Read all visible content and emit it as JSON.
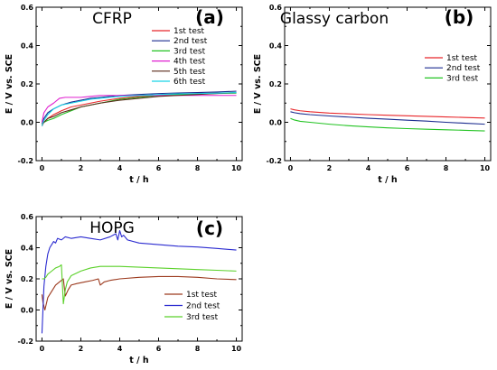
{
  "chart_data": [
    {
      "type": "line",
      "title": "CFRP",
      "panel_letter": "(a)",
      "xlabel": "t / h",
      "ylabel": "E / V vs. SCE",
      "xlim": [
        -0.3,
        10.3
      ],
      "ylim": [
        -0.2,
        0.6
      ],
      "x_ticks": [
        0,
        2,
        4,
        6,
        8,
        10
      ],
      "x_tick_labels": [
        "0",
        "2",
        "4",
        "6",
        "8",
        "10"
      ],
      "y_ticks": [
        -0.2,
        0.0,
        0.2,
        0.4,
        0.6
      ],
      "y_tick_labels": [
        "-0.2",
        "0.0",
        "0.2",
        "0.4",
        "0.6"
      ],
      "legend_position": "top-right",
      "series": [
        {
          "name": "1st test",
          "color": "#e8262a",
          "x": [
            0,
            0.1,
            0.3,
            0.6,
            1,
            1.5,
            2,
            2.5,
            3,
            4,
            5,
            6,
            7,
            8,
            9,
            10
          ],
          "y": [
            -0.02,
            0.0,
            0.02,
            0.04,
            0.06,
            0.08,
            0.09,
            0.1,
            0.11,
            0.125,
            0.135,
            0.14,
            0.145,
            0.15,
            0.152,
            0.155
          ]
        },
        {
          "name": "2nd test",
          "color": "#1b2c8f",
          "x": [
            0,
            0.1,
            0.3,
            0.6,
            1,
            1.5,
            2,
            2.5,
            3,
            4,
            5,
            6,
            7,
            8,
            9,
            10
          ],
          "y": [
            -0.01,
            0.02,
            0.05,
            0.07,
            0.09,
            0.105,
            0.115,
            0.125,
            0.13,
            0.14,
            0.145,
            0.15,
            0.153,
            0.155,
            0.158,
            0.162
          ]
        },
        {
          "name": "3rd test",
          "color": "#22c322",
          "x": [
            0,
            0.1,
            0.3,
            0.6,
            1,
            1.5,
            2,
            2.5,
            3,
            4,
            5,
            6,
            7,
            8,
            9,
            10
          ],
          "y": [
            -0.01,
            0.0,
            0.01,
            0.02,
            0.04,
            0.06,
            0.08,
            0.09,
            0.1,
            0.12,
            0.13,
            0.14,
            0.145,
            0.148,
            0.15,
            0.152
          ]
        },
        {
          "name": "4th test",
          "color": "#e020d0",
          "x": [
            0,
            0.1,
            0.3,
            0.6,
            0.9,
            1.2,
            1.5,
            2,
            2.5,
            3,
            4,
            5,
            6,
            7,
            8,
            9,
            10
          ],
          "y": [
            0.0,
            0.05,
            0.08,
            0.1,
            0.125,
            0.13,
            0.13,
            0.13,
            0.135,
            0.14,
            0.14,
            0.14,
            0.14,
            0.14,
            0.14,
            0.14,
            0.14
          ]
        },
        {
          "name": "5th test",
          "color": "#5a2a1a",
          "x": [
            0,
            0.1,
            0.3,
            0.6,
            1,
            1.5,
            2,
            2.5,
            3,
            4,
            5,
            6,
            7,
            8,
            9,
            10
          ],
          "y": [
            -0.01,
            0.0,
            0.02,
            0.03,
            0.05,
            0.065,
            0.08,
            0.09,
            0.1,
            0.115,
            0.125,
            0.135,
            0.14,
            0.145,
            0.15,
            0.155
          ]
        },
        {
          "name": "6th test",
          "color": "#19d4e6",
          "x": [
            0,
            0.1,
            0.3,
            0.6,
            1,
            1.5,
            2,
            2.5,
            3,
            4,
            5,
            6,
            7,
            8,
            9,
            10
          ],
          "y": [
            -0.02,
            0.01,
            0.04,
            0.07,
            0.09,
            0.1,
            0.11,
            0.12,
            0.125,
            0.135,
            0.14,
            0.145,
            0.148,
            0.15,
            0.152,
            0.155
          ]
        }
      ]
    },
    {
      "type": "line",
      "title": "Glassy carbon",
      "panel_letter": "(b)",
      "xlabel": "t / h",
      "ylabel": "E / V vs. SCE",
      "xlim": [
        -0.3,
        10.3
      ],
      "ylim": [
        -0.2,
        0.6
      ],
      "x_ticks": [
        0,
        2,
        4,
        6,
        8,
        10
      ],
      "x_tick_labels": [
        "0",
        "2",
        "4",
        "6",
        "8",
        "10"
      ],
      "y_ticks": [
        -0.2,
        0.0,
        0.2,
        0.4,
        0.6
      ],
      "y_tick_labels": [
        "-0.2",
        "0.0",
        "0.2",
        "0.4",
        "0.6"
      ],
      "legend_position": "right",
      "series": [
        {
          "name": "1st test",
          "color": "#e8262a",
          "x": [
            0,
            0.2,
            0.5,
            1,
            2,
            3,
            4,
            5,
            6,
            7,
            8,
            9,
            10
          ],
          "y": [
            0.07,
            0.065,
            0.06,
            0.055,
            0.048,
            0.044,
            0.04,
            0.037,
            0.034,
            0.031,
            0.028,
            0.025,
            0.022
          ]
        },
        {
          "name": "2nd test",
          "color": "#1b2c8f",
          "x": [
            0,
            0.2,
            0.5,
            1,
            2,
            3,
            4,
            5,
            6,
            7,
            8,
            9,
            10
          ],
          "y": [
            0.055,
            0.05,
            0.045,
            0.04,
            0.033,
            0.027,
            0.021,
            0.016,
            0.011,
            0.006,
            0.0,
            -0.005,
            -0.01
          ]
        },
        {
          "name": "3rd test",
          "color": "#22c322",
          "x": [
            0,
            0.2,
            0.5,
            1,
            2,
            3,
            4,
            5,
            6,
            7,
            8,
            9,
            10
          ],
          "y": [
            0.02,
            0.012,
            0.005,
            0.0,
            -0.01,
            -0.018,
            -0.024,
            -0.029,
            -0.033,
            -0.036,
            -0.039,
            -0.042,
            -0.045
          ]
        }
      ]
    },
    {
      "type": "line",
      "title": "HOPG",
      "panel_letter": "(c)",
      "xlabel": "t / h",
      "ylabel": "E / V vs. SCE",
      "xlim": [
        -0.3,
        10.3
      ],
      "ylim": [
        -0.2,
        0.6
      ],
      "x_ticks": [
        0,
        2,
        4,
        6,
        8,
        10
      ],
      "x_tick_labels": [
        "0",
        "2",
        "4",
        "6",
        "8",
        "10"
      ],
      "y_ticks": [
        -0.2,
        0.0,
        0.2,
        0.4,
        0.6
      ],
      "y_tick_labels": [
        "-0.2",
        "0.0",
        "0.2",
        "0.4",
        "0.6"
      ],
      "legend_position": "bottom-right",
      "series": [
        {
          "name": "1st test",
          "color": "#9c3a1e",
          "x": [
            0,
            0.05,
            0.15,
            0.3,
            0.5,
            0.7,
            0.9,
            1.0,
            1.1,
            1.2,
            1.35,
            1.5,
            1.8,
            2.2,
            2.6,
            2.9,
            3.0,
            3.2,
            3.5,
            4,
            5,
            6,
            7,
            8,
            9,
            10
          ],
          "y": [
            0.1,
            0.05,
            0.0,
            0.08,
            0.12,
            0.16,
            0.18,
            0.19,
            0.2,
            0.09,
            0.13,
            0.16,
            0.17,
            0.18,
            0.19,
            0.2,
            0.16,
            0.18,
            0.19,
            0.2,
            0.21,
            0.215,
            0.215,
            0.21,
            0.2,
            0.195
          ]
        },
        {
          "name": "2nd test",
          "color": "#2b2bd0",
          "x": [
            0,
            0.05,
            0.1,
            0.2,
            0.3,
            0.4,
            0.5,
            0.6,
            0.7,
            0.8,
            1.0,
            1.2,
            1.5,
            2,
            2.5,
            3,
            3.5,
            3.8,
            3.9,
            4.0,
            4.1,
            4.2,
            4.4,
            5,
            6,
            7,
            8,
            9,
            10
          ],
          "y": [
            -0.15,
            0.0,
            0.15,
            0.28,
            0.36,
            0.4,
            0.42,
            0.44,
            0.43,
            0.46,
            0.45,
            0.47,
            0.46,
            0.47,
            0.46,
            0.45,
            0.47,
            0.49,
            0.45,
            0.51,
            0.47,
            0.48,
            0.45,
            0.43,
            0.42,
            0.41,
            0.405,
            0.395,
            0.385
          ]
        },
        {
          "name": "3rd test",
          "color": "#5bd12a",
          "x": [
            0,
            0.1,
            0.2,
            0.3,
            0.5,
            0.7,
            0.9,
            1.0,
            1.1,
            1.2,
            1.3,
            1.5,
            2,
            2.5,
            3,
            4,
            5,
            6,
            7,
            8,
            9,
            10
          ],
          "y": [
            0.2,
            0.2,
            0.21,
            0.23,
            0.25,
            0.27,
            0.28,
            0.29,
            0.04,
            0.13,
            0.18,
            0.22,
            0.25,
            0.27,
            0.28,
            0.28,
            0.275,
            0.27,
            0.265,
            0.26,
            0.255,
            0.25
          ]
        }
      ]
    }
  ]
}
